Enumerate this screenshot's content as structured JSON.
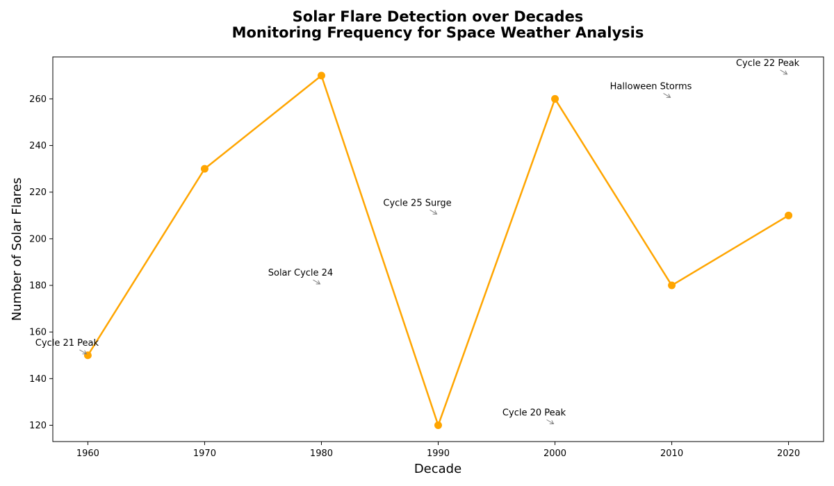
{
  "chart_data": {
    "type": "line",
    "title_line1": "Solar Flare Detection over Decades",
    "title_line2": "Monitoring Frequency for Space Weather Analysis",
    "xlabel": "Decade",
    "ylabel": "Number of Solar Flares",
    "x": [
      1960,
      1970,
      1980,
      1990,
      2000,
      2010,
      2020
    ],
    "series": [
      {
        "values": [
          150,
          230,
          270,
          120,
          260,
          180,
          210
        ],
        "color": "#FFA500"
      }
    ],
    "xlim": [
      1957,
      2023
    ],
    "ylim": [
      113,
      278
    ],
    "xticks": [
      1960,
      1970,
      1980,
      1990,
      2000,
      2010,
      2020
    ],
    "yticks": [
      120,
      140,
      160,
      180,
      200,
      220,
      240,
      260
    ],
    "grid": false,
    "annotations": [
      {
        "text": "Cycle 21 Peak",
        "x": 1960,
        "y": 150
      },
      {
        "text": "Solar Cycle 24",
        "x": 1980,
        "y": 180
      },
      {
        "text": "Cycle 25 Surge",
        "x": 1990,
        "y": 210
      },
      {
        "text": "Cycle 20 Peak",
        "x": 2000,
        "y": 120
      },
      {
        "text": "Halloween Storms",
        "x": 2010,
        "y": 260
      },
      {
        "text": "Cycle 22 Peak",
        "x": 2020,
        "y": 270
      }
    ]
  }
}
